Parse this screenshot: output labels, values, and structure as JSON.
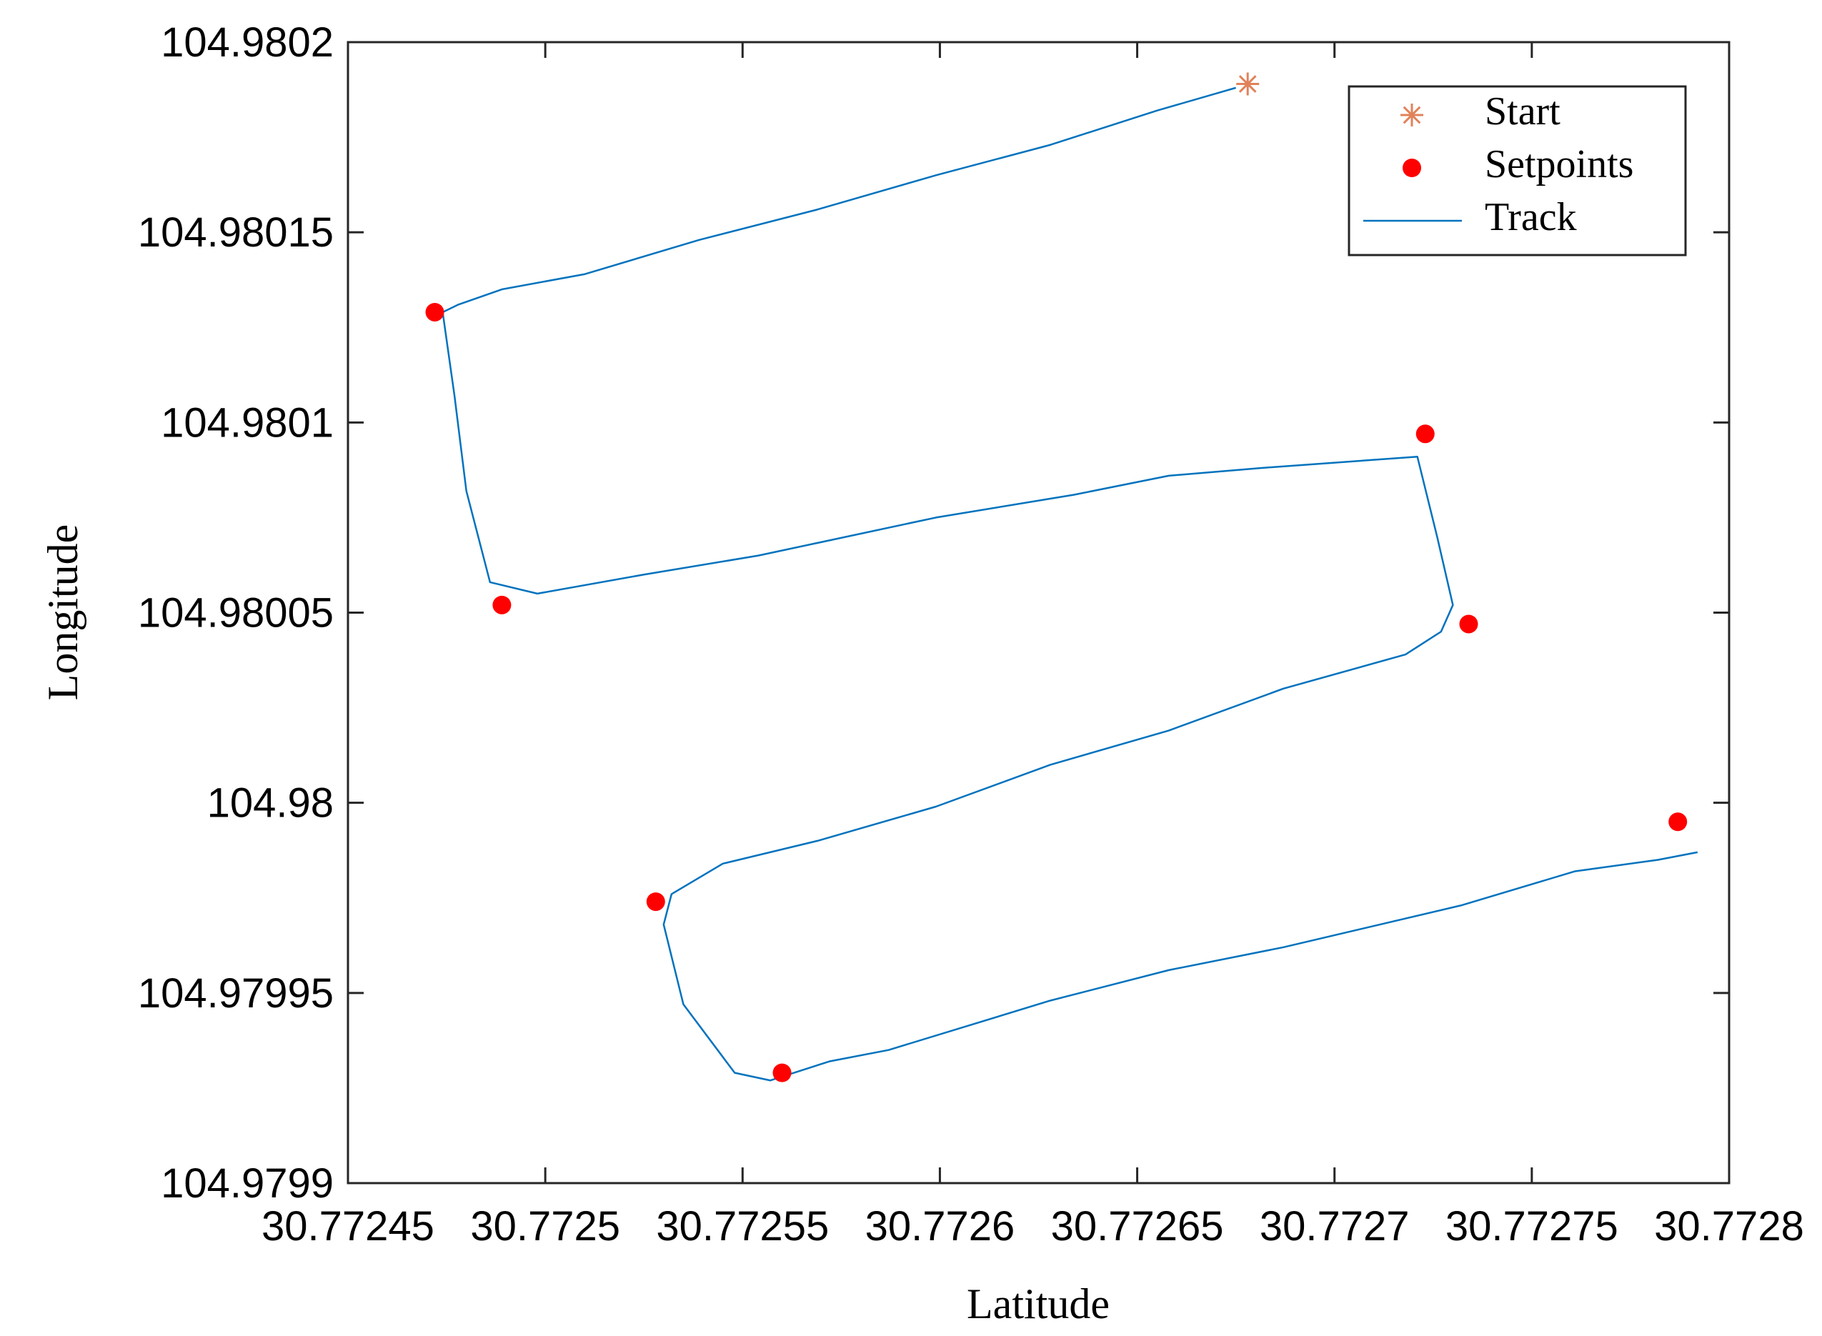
{
  "chart_data": {
    "type": "line",
    "xlabel": "Latitude",
    "ylabel": "Longitude",
    "xlim": [
      30.77245,
      30.7728
    ],
    "xticks": [
      30.77245,
      30.7725,
      30.77255,
      30.7726,
      30.77265,
      30.7727,
      30.77275,
      30.7728
    ],
    "ylim": [
      104.9799,
      104.9802
    ],
    "yticks": [
      104.9799,
      104.97995,
      104.98,
      104.98005,
      104.9801,
      104.98015,
      104.9802
    ],
    "grid": false,
    "legend": "upper right",
    "series": [
      {
        "name": "Start",
        "marker": "asterisk",
        "color": "#e0825a",
        "x": [
          30.772678
        ],
        "values": [
          104.980189
        ]
      },
      {
        "name": "Setpoints",
        "marker": "dot",
        "color": "#ff0000",
        "x": [
          30.772472,
          30.772489,
          30.772723,
          30.772734,
          30.772787,
          30.772528,
          30.77256
        ],
        "values": [
          104.980129,
          104.980052,
          104.980097,
          104.980047,
          104.979995,
          104.979974,
          104.979929
        ]
      },
      {
        "name": "Track",
        "marker": "none",
        "color": "#0072bd",
        "x": [
          30.772675,
          30.772655,
          30.772628,
          30.772599,
          30.772569,
          30.772539,
          30.77251,
          30.772489,
          30.772478,
          30.772474,
          30.772477,
          30.77248,
          30.772486,
          30.772498,
          30.772525,
          30.772554,
          30.772599,
          30.772634,
          30.772658,
          30.772681,
          30.772721,
          30.772726,
          30.77273,
          30.772727,
          30.772718,
          30.772687,
          30.772658,
          30.772628,
          30.772599,
          30.772569,
          30.772545,
          30.772532,
          30.77253,
          30.772535,
          30.772548,
          30.772557,
          30.772572,
          30.772587,
          30.772628,
          30.772658,
          30.772687,
          30.772732,
          30.772761,
          30.772782,
          30.772792
        ],
        "values": [
          104.980188,
          104.980182,
          104.980173,
          104.980165,
          104.980156,
          104.980148,
          104.980139,
          104.980135,
          104.980131,
          104.980129,
          104.980107,
          104.980082,
          104.980058,
          104.980055,
          104.98006,
          104.980065,
          104.980075,
          104.980081,
          104.980086,
          104.980088,
          104.980091,
          104.98007,
          104.980052,
          104.980045,
          104.980039,
          104.98003,
          104.980019,
          104.98001,
          104.979999,
          104.97999,
          104.979984,
          104.979976,
          104.979968,
          104.979947,
          104.979929,
          104.979927,
          104.979932,
          104.979935,
          104.979948,
          104.979956,
          104.979962,
          104.979973,
          104.979982,
          104.979985,
          104.979987
        ]
      }
    ]
  }
}
